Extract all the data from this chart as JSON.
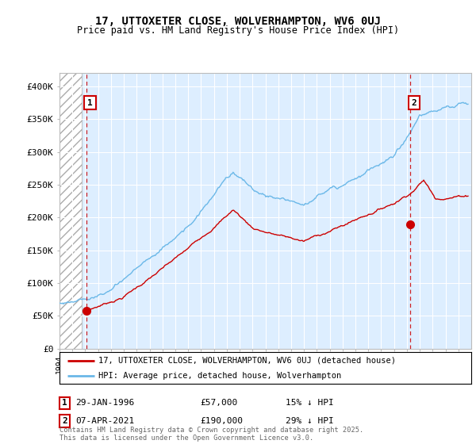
{
  "title": "17, UTTOXETER CLOSE, WOLVERHAMPTON, WV6 0UJ",
  "subtitle": "Price paid vs. HM Land Registry's House Price Index (HPI)",
  "ylim": [
    0,
    420000
  ],
  "yticks": [
    0,
    50000,
    100000,
    150000,
    200000,
    250000,
    300000,
    350000,
    400000
  ],
  "ytick_labels": [
    "£0",
    "£50K",
    "£100K",
    "£150K",
    "£200K",
    "£250K",
    "£300K",
    "£350K",
    "£400K"
  ],
  "xlim_start": 1994.0,
  "xlim_end": 2026.0,
  "hpi_color": "#6bb8e8",
  "price_color": "#cc0000",
  "marker1_x": 1996.08,
  "marker1_y": 57000,
  "marker2_x": 2021.27,
  "marker2_y": 190000,
  "annotation1_date": "29-JAN-1996",
  "annotation1_price": "£57,000",
  "annotation1_hpi": "15% ↓ HPI",
  "annotation2_date": "07-APR-2021",
  "annotation2_price": "£190,000",
  "annotation2_hpi": "29% ↓ HPI",
  "legend_line1": "17, UTTOXETER CLOSE, WOLVERHAMPTON, WV6 0UJ (detached house)",
  "legend_line2": "HPI: Average price, detached house, Wolverhampton",
  "footer": "Contains HM Land Registry data © Crown copyright and database right 2025.\nThis data is licensed under the Open Government Licence v3.0.",
  "bg_hatch_end": 1995.75,
  "vline1_x": 1996.08,
  "vline2_x": 2021.27,
  "background_color": "#ffffff",
  "plot_bg_color": "#ddeeff",
  "hatch_color": "#bbbbbb",
  "box1_label": "1",
  "box2_label": "2"
}
